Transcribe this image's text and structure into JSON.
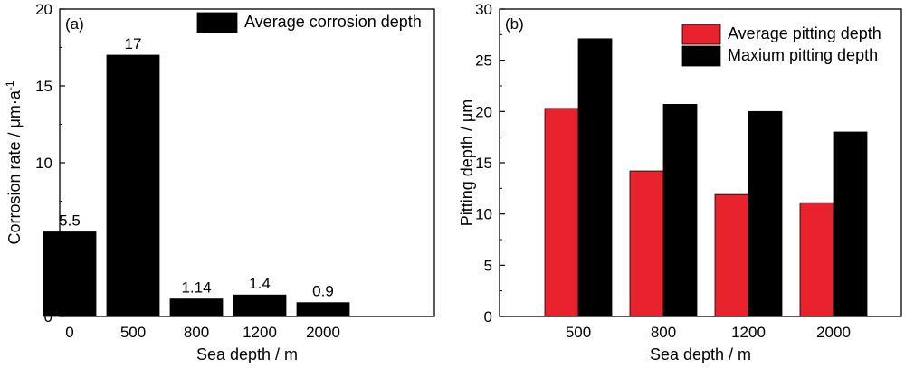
{
  "colors": {
    "black": "#000000",
    "red": "#e8232d",
    "frame": "#000000",
    "background": "#ffffff"
  },
  "chart_data": [
    {
      "type": "bar",
      "panel_label": "(a)",
      "categories": [
        "0",
        "500",
        "800",
        "1200",
        "2000"
      ],
      "series": [
        {
          "name": "Average corrosion depth",
          "values": [
            5.5,
            17,
            1.14,
            1.4,
            0.9
          ],
          "color": "#000000"
        }
      ],
      "data_labels": [
        "5.5",
        "17",
        "1.14",
        "1.4",
        "0.9"
      ],
      "title": "",
      "xlabel": "Sea depth / m",
      "ylabel": "Corrosion rate / μm·a",
      "ylabel_superscript": "-1",
      "ylim": [
        0,
        20
      ],
      "yticks": [
        "0",
        "5",
        "10",
        "15",
        "20"
      ],
      "legend_position": "top-right",
      "grid": false
    },
    {
      "type": "bar",
      "panel_label": "(b)",
      "categories": [
        "500",
        "800",
        "1200",
        "2000"
      ],
      "series": [
        {
          "name": "Average pitting depth",
          "values": [
            20.3,
            14.2,
            11.9,
            11.1
          ],
          "color": "#e8232d"
        },
        {
          "name": "Maxium pitting depth",
          "values": [
            27.1,
            20.7,
            20.0,
            18.0
          ],
          "color": "#000000"
        }
      ],
      "title": "",
      "xlabel": "Sea depth / m",
      "ylabel": "Pitting depth / μm",
      "ylim": [
        0,
        30
      ],
      "yticks": [
        "0",
        "5",
        "10",
        "15",
        "20",
        "25",
        "30"
      ],
      "legend_position": "top-right",
      "grid": false
    }
  ]
}
